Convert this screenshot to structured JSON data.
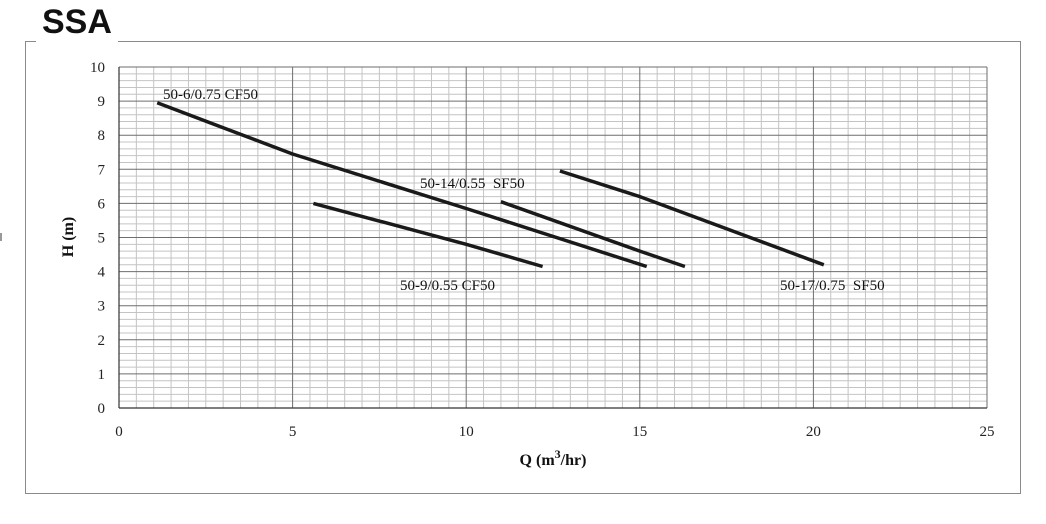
{
  "title": "SSA",
  "chart_data": {
    "type": "line",
    "title": "SSA",
    "xlabel": "Q (m3/hr)",
    "xlabel_main": "Q (m",
    "xlabel_sup": "3",
    "xlabel_tail": "/hr)",
    "ylabel": "H (m)",
    "xlim": [
      0,
      25
    ],
    "ylim": [
      0,
      10
    ],
    "xticks": [
      0,
      5,
      10,
      15,
      20,
      25
    ],
    "yticks": [
      0,
      1,
      2,
      3,
      4,
      5,
      6,
      7,
      8,
      9,
      10
    ],
    "grid": true,
    "series": [
      {
        "name": "50-6/0.75 CF50",
        "x": [
          1.1,
          5.0,
          10.0,
          15.2
        ],
        "y": [
          8.95,
          7.45,
          5.85,
          4.15
        ]
      },
      {
        "name": "50-9/0.55 CF50",
        "x": [
          5.6,
          10.0,
          12.2
        ],
        "y": [
          6.0,
          4.8,
          4.15
        ]
      },
      {
        "name": "50-14/0.55  SF50",
        "x": [
          11.0,
          15.0,
          16.3
        ],
        "y": [
          6.05,
          4.6,
          4.15
        ]
      },
      {
        "name": "50-17/0.75  SF50",
        "x": [
          12.7,
          15.0,
          20.3
        ],
        "y": [
          6.95,
          6.2,
          4.2
        ]
      }
    ]
  }
}
